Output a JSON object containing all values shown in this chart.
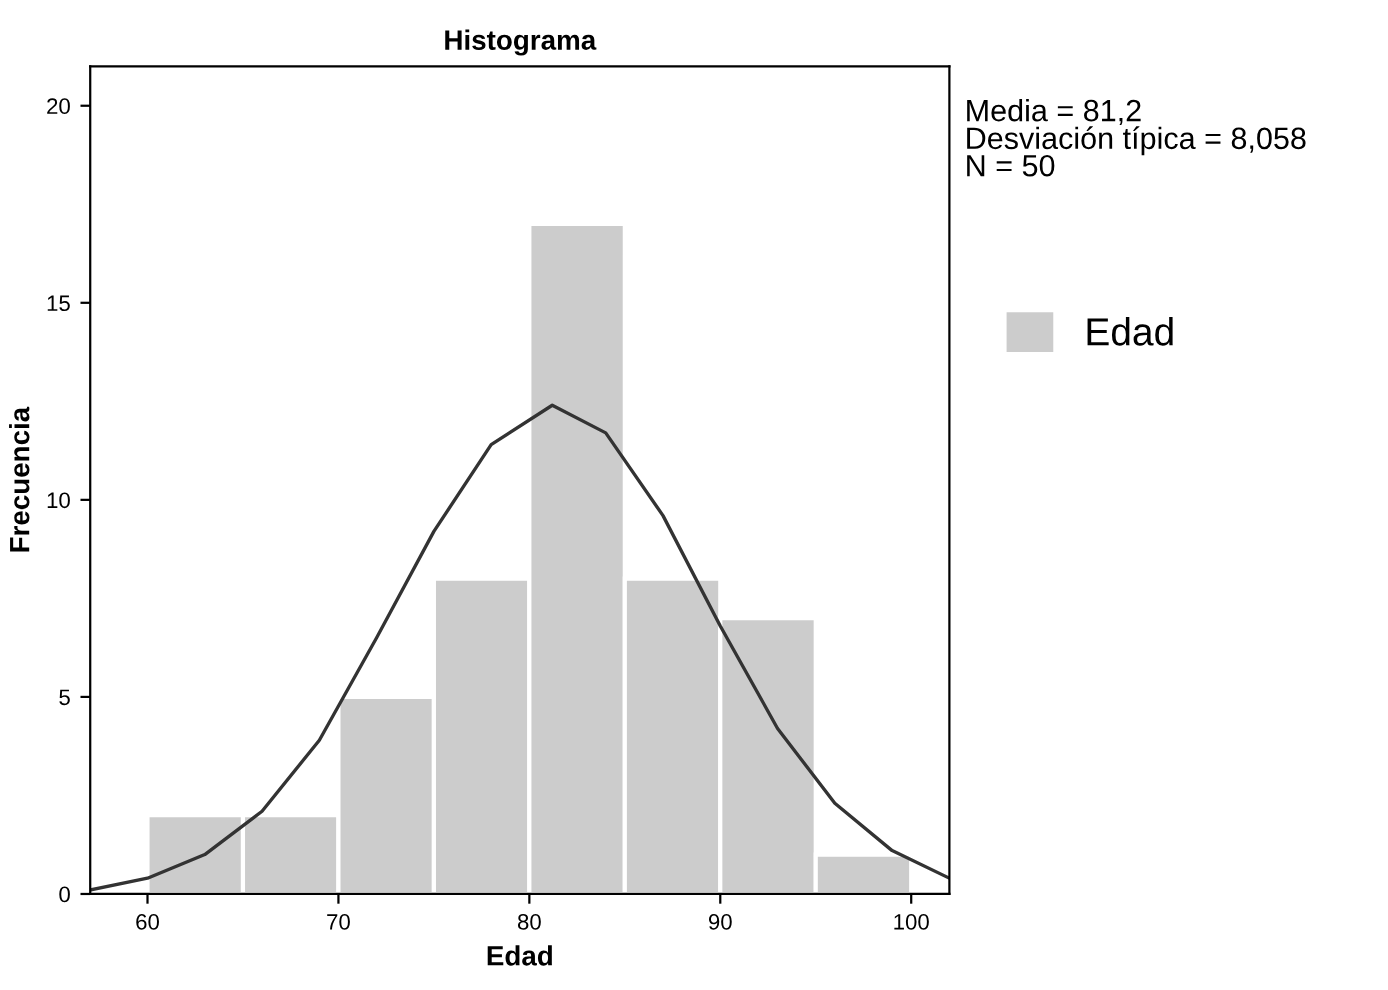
{
  "chart_data": {
    "type": "histogram",
    "title": "Histograma",
    "xlabel": "Edad",
    "ylabel": "Frecuencia",
    "bins": [
      60,
      65,
      70,
      75,
      80,
      85,
      90,
      95,
      100
    ],
    "series": [
      {
        "name": "Edad",
        "color": "#cccccc",
        "values": [
          2,
          2,
          5,
          8,
          17,
          8,
          7,
          1
        ]
      },
      {
        "type": "line",
        "color": "#333333",
        "x": [
          57,
          60,
          63,
          66,
          69,
          72,
          75,
          78,
          81.2,
          84,
          87,
          90,
          93,
          96,
          99,
          102
        ],
        "values": [
          0.1,
          0.4,
          1.0,
          2.1,
          3.9,
          6.5,
          9.2,
          11.4,
          12.4,
          11.7,
          9.6,
          6.8,
          4.2,
          2.3,
          1.1,
          0.4
        ]
      }
    ],
    "xlim": [
      57,
      102
    ],
    "ylim": [
      0,
      21
    ],
    "xticks": [
      60,
      70,
      80,
      90,
      100
    ],
    "yticks": [
      0,
      5,
      10,
      15,
      20
    ],
    "annotations": [
      "Media = 81,2",
      "Desviación típica = 8,058",
      "N = 50"
    ],
    "grid": false,
    "legend": "right",
    "marker": "none"
  }
}
